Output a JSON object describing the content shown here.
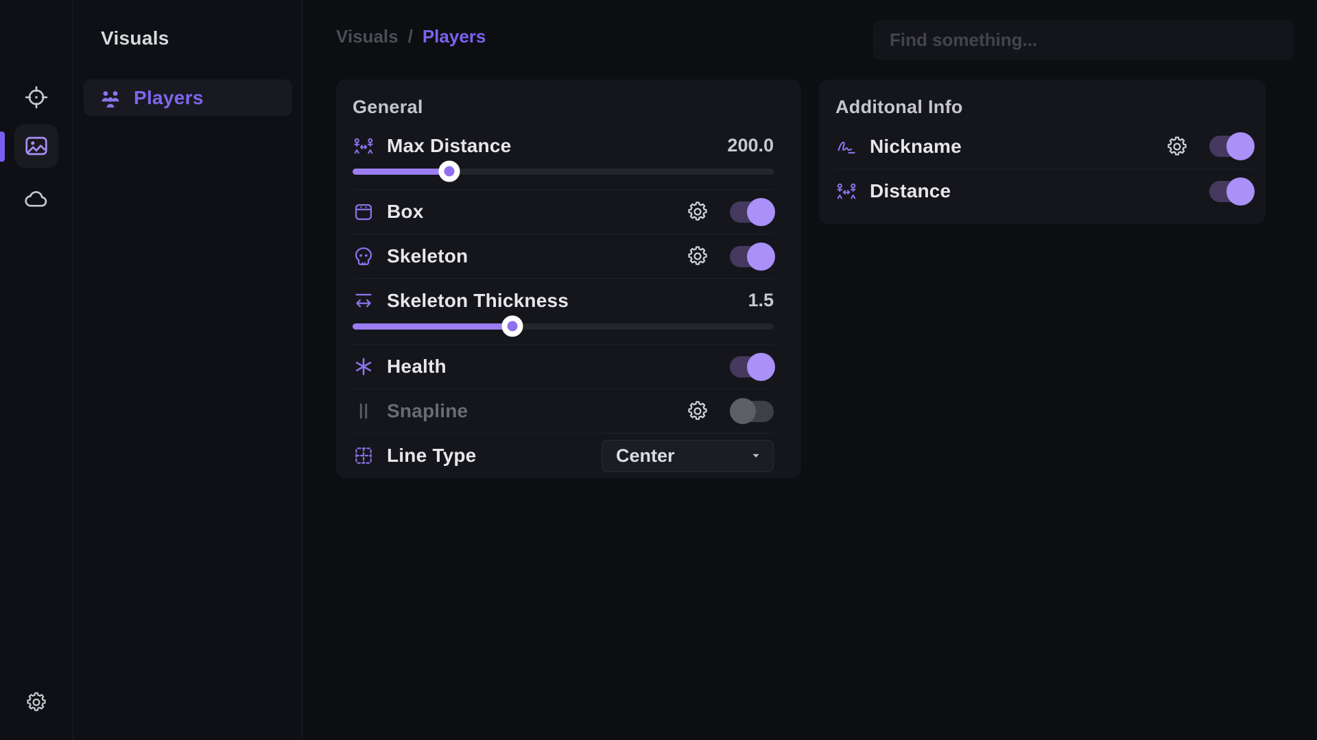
{
  "colors": {
    "accent": "#9c7df2",
    "accent_text": "#7d66ef",
    "toggle_track_on": "#45395f",
    "toggle_knob_on": "#ab90f7",
    "toggle_track_off": "#3f4046",
    "toggle_knob_off": "#5e5f66",
    "panel_bg": "#15161c",
    "app_bg": "#0d0e12"
  },
  "rail": {
    "items": [
      {
        "name": "aim",
        "icon": "crosshair-icon",
        "active": false
      },
      {
        "name": "visuals",
        "icon": "image-icon",
        "active": true
      },
      {
        "name": "cloud",
        "icon": "cloud-icon",
        "active": false
      }
    ],
    "bottom": {
      "name": "settings",
      "icon": "gear-icon"
    }
  },
  "sidebar": {
    "title": "Visuals",
    "items": [
      {
        "label": "Players",
        "icon": "users-icon",
        "active": true
      }
    ]
  },
  "header": {
    "breadcrumb_parent": "Visuals",
    "breadcrumb_separator": "/",
    "breadcrumb_current": "Players",
    "search_placeholder": "Find something..."
  },
  "panels": [
    {
      "title": "General",
      "rows": [
        {
          "type": "slider",
          "icon": "distance-icon",
          "label": "Max Distance",
          "value": "200.0",
          "fill_pct": 23
        },
        {
          "type": "toggle",
          "icon": "box-icon",
          "label": "Box",
          "gear": true,
          "on": true
        },
        {
          "type": "toggle",
          "icon": "skull-icon",
          "label": "Skeleton",
          "gear": true,
          "on": true
        },
        {
          "type": "slider",
          "icon": "thickness-icon",
          "label": "Skeleton Thickness",
          "value": "1.5",
          "fill_pct": 38
        },
        {
          "type": "toggle",
          "icon": "asterisk-icon",
          "label": "Health",
          "gear": false,
          "on": true
        },
        {
          "type": "toggle",
          "icon": "snapline-icon",
          "label": "Snapline",
          "gear": true,
          "on": false,
          "disabled": true
        },
        {
          "type": "select",
          "icon": "grid-icon",
          "label": "Line Type",
          "value": "Center",
          "chevron": "chevron-down-icon"
        }
      ]
    },
    {
      "title": "Additonal Info",
      "rows": [
        {
          "type": "toggle",
          "icon": "signature-icon",
          "label": "Nickname",
          "gear": true,
          "on": true
        },
        {
          "type": "toggle",
          "icon": "distance-icon",
          "label": "Distance",
          "gear": false,
          "on": true
        }
      ]
    }
  ]
}
